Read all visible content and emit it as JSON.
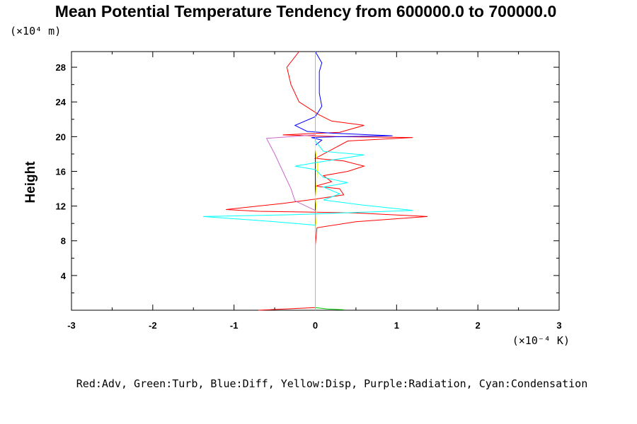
{
  "chart_data": {
    "type": "line",
    "title": "Mean Potential Temperature Tendency from 600000.0 to 700000.0",
    "ylabel": "Height",
    "yunit_label": "(×10⁴ m)",
    "xunit_label": "(×10⁻⁴ K)",
    "legend_text": "Red:Adv, Green:Turb, Blue:Diff, Yellow:Disp, Purple:Radiation, Cyan:Condensation",
    "xlim": [
      -3,
      3
    ],
    "ylim": [
      0,
      29.8
    ],
    "x_ticks": [
      -3,
      -2,
      -1,
      0,
      1,
      2,
      3
    ],
    "y_ticks": [
      4,
      8,
      12,
      16,
      20,
      24,
      28
    ],
    "grid": false,
    "series": [
      {
        "name": "Adv",
        "color": "#ff0000",
        "points": [
          [
            -0.7,
            0.0
          ],
          [
            0.0,
            0.3
          ],
          [
            0.0,
            2.0
          ],
          [
            0.0,
            7.5
          ],
          [
            0.02,
            9.5
          ],
          [
            0.5,
            10.2
          ],
          [
            1.38,
            10.8
          ],
          [
            0.5,
            11.2
          ],
          [
            0.0,
            11.3
          ],
          [
            -0.7,
            11.4
          ],
          [
            -1.1,
            11.6
          ],
          [
            -0.4,
            12.3
          ],
          [
            0.0,
            12.8
          ],
          [
            0.35,
            13.3
          ],
          [
            0.3,
            14.0
          ],
          [
            0.0,
            14.3
          ],
          [
            0.2,
            14.8
          ],
          [
            0.1,
            15.5
          ],
          [
            0.4,
            16.0
          ],
          [
            0.6,
            16.6
          ],
          [
            0.35,
            17.2
          ],
          [
            0.0,
            17.5
          ],
          [
            0.2,
            18.5
          ],
          [
            0.4,
            19.5
          ],
          [
            1.2,
            19.9
          ],
          [
            0.3,
            20.0
          ],
          [
            -0.4,
            20.2
          ],
          [
            0.3,
            20.5
          ],
          [
            0.6,
            21.3
          ],
          [
            0.2,
            21.8
          ],
          [
            0.05,
            22.5
          ],
          [
            -0.2,
            24.0
          ],
          [
            -0.3,
            26.0
          ],
          [
            -0.35,
            28.0
          ],
          [
            -0.2,
            29.8
          ]
        ]
      },
      {
        "name": "Turb",
        "color": "#00cc00",
        "points": [
          [
            0.35,
            0.05
          ],
          [
            0.15,
            0.15
          ],
          [
            0.0,
            0.3
          ],
          [
            0.0,
            1.0
          ],
          [
            0.0,
            29.8
          ]
        ]
      },
      {
        "name": "Diff",
        "color": "#0000ff",
        "points": [
          [
            0.0,
            0.0
          ],
          [
            0.0,
            10.5
          ],
          [
            0.0,
            19.0
          ],
          [
            0.08,
            19.6
          ],
          [
            -0.05,
            19.9
          ],
          [
            0.3,
            20.0
          ],
          [
            0.95,
            20.1
          ],
          [
            0.2,
            20.4
          ],
          [
            -0.1,
            20.6
          ],
          [
            -0.25,
            21.3
          ],
          [
            0.0,
            22.3
          ],
          [
            0.08,
            23.5
          ],
          [
            0.05,
            25.0
          ],
          [
            0.05,
            27.5
          ],
          [
            0.08,
            28.5
          ],
          [
            0.0,
            29.8
          ]
        ]
      },
      {
        "name": "Disp",
        "color": "#ffff00",
        "points": [
          [
            0.0,
            0.0
          ],
          [
            0.0,
            9.5
          ],
          [
            0.02,
            11.0
          ],
          [
            0.0,
            13.0
          ],
          [
            0.03,
            16.5
          ],
          [
            0.0,
            18.5
          ],
          [
            0.0,
            29.8
          ]
        ]
      },
      {
        "name": "Radiation",
        "color": "#cc66cc",
        "points": [
          [
            0.0,
            0.0
          ],
          [
            0.0,
            11.5
          ],
          [
            -0.25,
            12.6
          ],
          [
            -0.3,
            14.0
          ],
          [
            -0.4,
            16.0
          ],
          [
            -0.5,
            18.0
          ],
          [
            -0.6,
            19.8
          ],
          [
            0.0,
            20.2
          ],
          [
            0.0,
            29.8
          ]
        ]
      },
      {
        "name": "Condensation",
        "color": "#00ffff",
        "points": [
          [
            0.0,
            0.0
          ],
          [
            0.0,
            9.8
          ],
          [
            -0.5,
            10.2
          ],
          [
            -1.38,
            10.8
          ],
          [
            -0.3,
            11.0
          ],
          [
            0.0,
            11.1
          ],
          [
            0.6,
            11.3
          ],
          [
            1.2,
            11.5
          ],
          [
            0.6,
            12.1
          ],
          [
            0.1,
            12.7
          ],
          [
            0.3,
            13.4
          ],
          [
            0.1,
            14.2
          ],
          [
            0.4,
            14.7
          ],
          [
            0.1,
            15.3
          ],
          [
            0.0,
            16.2
          ],
          [
            -0.25,
            16.6
          ],
          [
            0.0,
            17.0
          ],
          [
            0.6,
            17.9
          ],
          [
            0.1,
            18.3
          ],
          [
            0.0,
            19.5
          ],
          [
            0.0,
            29.8
          ]
        ]
      }
    ]
  }
}
